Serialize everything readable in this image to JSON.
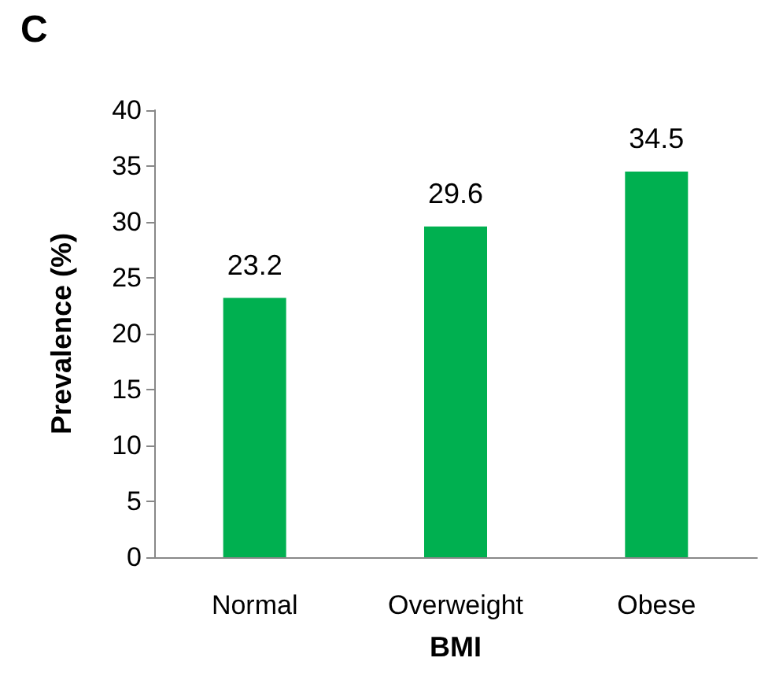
{
  "chart_data": {
    "type": "bar",
    "title": "C",
    "xlabel": "BMI",
    "ylabel": "Prevalence (%)",
    "categories": [
      "Normal",
      "Overweight",
      "Obese"
    ],
    "values": [
      23.2,
      29.6,
      34.5
    ],
    "color": "#00b050",
    "ylim": [
      0,
      40
    ],
    "yticks": [
      0,
      5,
      10,
      15,
      20,
      25,
      30,
      35,
      40
    ],
    "grid": false,
    "data_labels": true
  }
}
